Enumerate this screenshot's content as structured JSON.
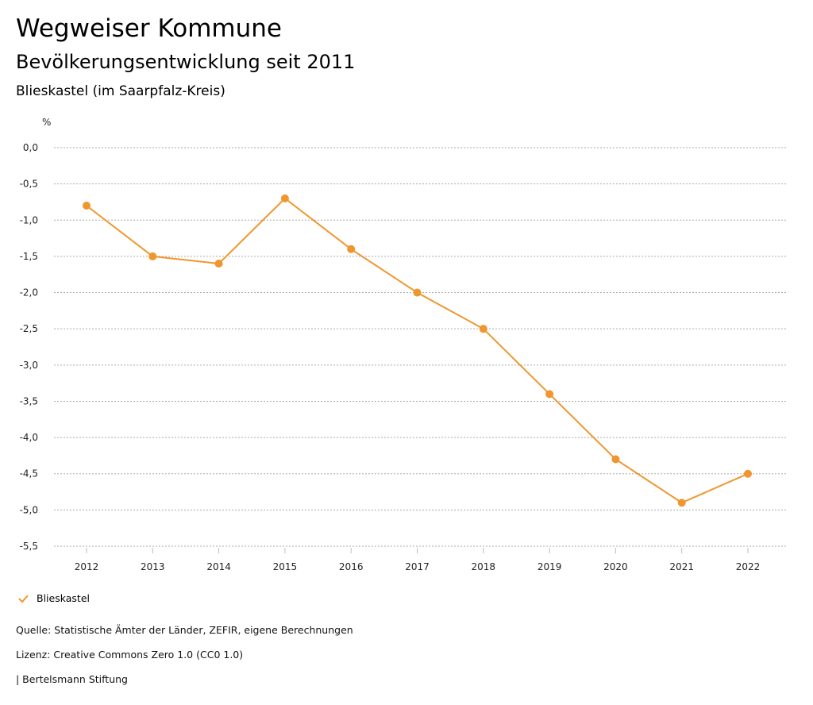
{
  "header": {
    "title": "Wegweiser Kommune",
    "subtitle": "Bevölkerungsentwicklung seit 2011",
    "region": "Blieskastel (im Saarpfalz-Kreis)"
  },
  "chart_data": {
    "type": "line",
    "ylabel": "%",
    "ylim": [
      -5.5,
      0
    ],
    "yticks": [
      0,
      -0.5,
      -1,
      -1.5,
      -2,
      -2.5,
      -3,
      -3.5,
      -4,
      -4.5,
      -5,
      -5.5
    ],
    "ytick_labels": [
      "0,0",
      "-0,5",
      "-1,0",
      "-1,5",
      "-2,0",
      "-2,5",
      "-3,0",
      "-3,5",
      "-4,0",
      "-4,5",
      "-5,0",
      "-5,5"
    ],
    "categories": [
      "2012",
      "2013",
      "2014",
      "2015",
      "2016",
      "2017",
      "2018",
      "2019",
      "2020",
      "2021",
      "2022"
    ],
    "series": [
      {
        "name": "Blieskastel",
        "color": "#f0962e",
        "values": [
          -0.8,
          -1.5,
          -1.6,
          -0.7,
          -1.4,
          -2.0,
          -2.5,
          -3.4,
          -4.3,
          -4.9,
          -4.5
        ]
      }
    ],
    "grid": true,
    "legend": "bottom-left"
  },
  "legend": {
    "label": "Blieskastel",
    "icon": "check-icon"
  },
  "footer": {
    "source": "Quelle: Statistische Ämter der Länder, ZEFIR, eigene Berechnungen",
    "license": "Lizenz: Creative Commons Zero 1.0 (CC0 1.0)",
    "publisher": "| Bertelsmann Stiftung"
  }
}
